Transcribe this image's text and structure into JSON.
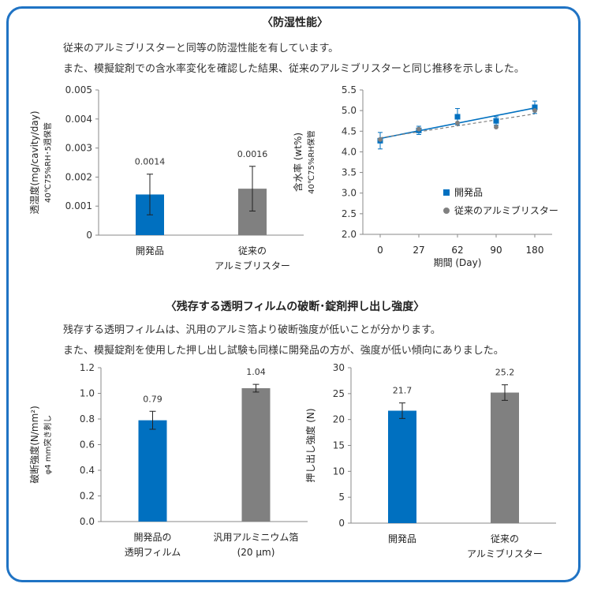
{
  "section1": {
    "title": "〈防湿性能〉",
    "lines": [
      "従来のアルミブリスターと同等の防湿性能を有しています。",
      "また、模擬錠剤での含水率変化を確認した結果、従来のアルミブリスターと同じ推移を示しました。"
    ]
  },
  "section2": {
    "title": "〈残存する透明フィルムの破断･錠剤押し出し強度〉",
    "lines": [
      "残存する透明フィルムは、汎用のアルミ箔より破断強度が低いことが分かります。",
      "また、模擬錠剤を使用した押し出し試験も同様に開発品の方が、強度が低い傾向にありました。"
    ]
  },
  "colors": {
    "frame": "#1f73c4",
    "developed": "#0070c0",
    "conventional": "#808080"
  },
  "chart_data": [
    {
      "id": "moisture",
      "type": "bar",
      "ylabel": "透湿度(mg/cavity/day)",
      "ylabel2": "40℃75%RH･5週保管",
      "ylim": [
        0,
        0.005
      ],
      "yticks": [
        "0",
        "0.001",
        "0.002",
        "0.003",
        "0.004",
        "0.005"
      ],
      "categories": [
        [
          "開発品"
        ],
        [
          "従来の",
          "アルミブリスター"
        ]
      ],
      "values": [
        0.0014,
        0.0016
      ],
      "labels": [
        "0.0014",
        "0.0016"
      ],
      "errors": [
        0.0007,
        0.00077
      ],
      "colors": [
        "#0070c0",
        "#808080"
      ]
    },
    {
      "id": "water",
      "type": "line",
      "ylabel": "含水率 (wt%)",
      "ylabel2": "40℃75%RH保管",
      "xlabel": "期間 (Day)",
      "ylim": [
        2.0,
        5.5
      ],
      "yticks": [
        "2.0",
        "2.5",
        "3.0",
        "3.5",
        "4.0",
        "4.5",
        "5.0",
        "5.5"
      ],
      "x": [
        "0",
        "27",
        "62",
        "90",
        "180"
      ],
      "series": [
        {
          "name": "開発品",
          "values": [
            4.27,
            4.52,
            4.85,
            4.75,
            5.08
          ],
          "errors": [
            0.2,
            0.1,
            0.2,
            0.1,
            0.15
          ],
          "color": "#0070c0",
          "marker": "square"
        },
        {
          "name": "従来のアルミブリスター",
          "values": [
            4.3,
            4.55,
            4.7,
            4.6,
            5.0
          ],
          "color": "#808080",
          "marker": "circle"
        }
      ],
      "legend": "right"
    },
    {
      "id": "break",
      "type": "bar",
      "ylabel": "破断強度(N/mm²)",
      "ylabel2": "φ4 mm突き刺し",
      "ylim": [
        0,
        1.2
      ],
      "yticks": [
        "0.0",
        "0.2",
        "0.4",
        "0.6",
        "0.8",
        "1.0",
        "1.2"
      ],
      "categories": [
        [
          "開発品の",
          "透明フィルム"
        ],
        [
          "汎用アルミニウム箔",
          "(20 μm)"
        ]
      ],
      "values": [
        0.79,
        1.04
      ],
      "labels": [
        "0.79",
        "1.04"
      ],
      "errors": [
        0.07,
        0.03
      ],
      "colors": [
        "#0070c0",
        "#808080"
      ]
    },
    {
      "id": "push",
      "type": "bar",
      "ylabel": "押し出し強度 (N)",
      "ylim": [
        0,
        30
      ],
      "yticks": [
        "0",
        "5",
        "10",
        "15",
        "20",
        "25",
        "30"
      ],
      "categories": [
        [
          "開発品"
        ],
        [
          "従来の",
          "アルミブリスター"
        ]
      ],
      "values": [
        21.7,
        25.2
      ],
      "labels": [
        "21.7",
        "25.2"
      ],
      "errors": [
        1.5,
        1.5
      ],
      "colors": [
        "#0070c0",
        "#808080"
      ]
    }
  ]
}
